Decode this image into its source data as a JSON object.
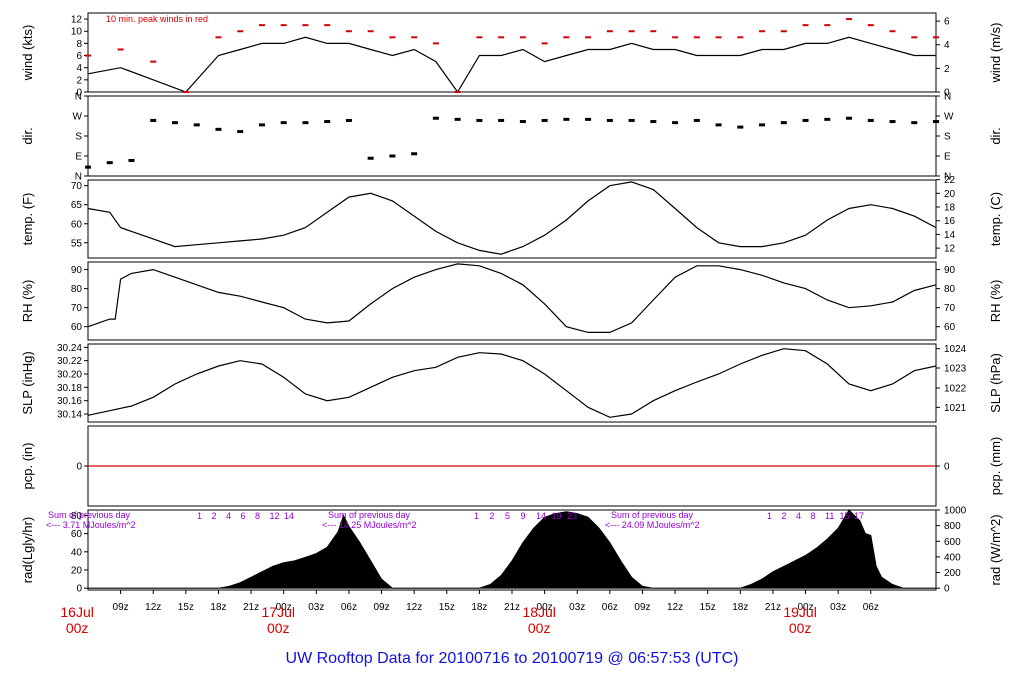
{
  "title": "UW Rooftop Data for 20100716  to  20100719 @ 06:57:53  (UTC)",
  "chart_data": [
    {
      "id": "wind",
      "type": "line",
      "ylabel_left": "wind (kts)",
      "ylabel_right": "wind (m/s)",
      "ylim": [
        0,
        13
      ],
      "ticks_left": [
        "0",
        "2",
        "4",
        "6",
        "8",
        "10",
        "12"
      ],
      "ticks_left_values": [
        0,
        2,
        4,
        6,
        8,
        10,
        12
      ],
      "ticks_right": [
        "0",
        "2",
        "4",
        "6"
      ],
      "ticks_right_values_kts": [
        0,
        3.89,
        7.78,
        11.66
      ],
      "annotation": "10 min. peak winds in red",
      "annotation_color": "#d40000",
      "series": [
        {
          "name": "wind speed",
          "color": "#000000",
          "x": [
            0,
            3,
            6,
            9,
            12,
            14,
            16,
            18,
            20,
            22,
            24,
            26,
            28,
            30,
            32,
            34,
            36,
            38,
            40,
            42,
            44,
            46,
            48,
            50,
            52,
            54,
            56,
            58,
            60,
            62,
            64,
            66,
            68,
            70,
            72,
            74,
            76,
            78
          ],
          "values": [
            3,
            4,
            2,
            0,
            6,
            7,
            8,
            8,
            9,
            8,
            8,
            7,
            6,
            7,
            5,
            0,
            6,
            6,
            7,
            5,
            6,
            7,
            7,
            8,
            7,
            7,
            6,
            6,
            6,
            7,
            7,
            8,
            8,
            9,
            8,
            7,
            6,
            6
          ]
        },
        {
          "name": "10 min. peak",
          "color": "#d40000",
          "x": [
            0,
            3,
            6,
            9,
            12,
            14,
            16,
            18,
            20,
            22,
            24,
            26,
            28,
            30,
            32,
            34,
            36,
            38,
            40,
            42,
            44,
            46,
            48,
            50,
            52,
            54,
            56,
            58,
            60,
            62,
            64,
            66,
            68,
            70,
            72,
            74,
            76,
            78
          ],
          "values": [
            6,
            7,
            5,
            0,
            9,
            10,
            11,
            11,
            11,
            11,
            10,
            10,
            9,
            9,
            8,
            0,
            9,
            9,
            9,
            8,
            9,
            9,
            10,
            10,
            10,
            9,
            9,
            9,
            9,
            10,
            10,
            11,
            11,
            12,
            11,
            10,
            9,
            9
          ]
        }
      ]
    },
    {
      "id": "dir",
      "type": "scatter",
      "ylabel_left": "dir.",
      "ylabel_right": "dir.",
      "ylim": [
        0,
        360
      ],
      "ticks_left": [
        "N",
        "E",
        "S",
        "W",
        "N"
      ],
      "ticks_left_values": [
        0,
        90,
        180,
        270,
        360
      ],
      "ticks_right": [
        "N",
        "E",
        "S",
        "W",
        "N"
      ],
      "ticks_right_values": [
        0,
        90,
        180,
        270,
        360
      ],
      "series": [
        {
          "name": "direction",
          "color": "#000000",
          "x": [
            0,
            2,
            4,
            6,
            8,
            10,
            12,
            14,
            16,
            18,
            20,
            22,
            24,
            26,
            28,
            30,
            32,
            34,
            36,
            38,
            40,
            42,
            44,
            46,
            48,
            50,
            52,
            54,
            56,
            58,
            60,
            62,
            64,
            66,
            68,
            70,
            72,
            74,
            76,
            78
          ],
          "values": [
            40,
            60,
            70,
            250,
            240,
            230,
            210,
            200,
            230,
            240,
            240,
            245,
            250,
            80,
            90,
            100,
            260,
            255,
            250,
            250,
            245,
            250,
            255,
            255,
            250,
            250,
            245,
            240,
            250,
            230,
            220,
            230,
            240,
            250,
            255,
            260,
            250,
            245,
            240,
            245
          ]
        }
      ]
    },
    {
      "id": "temp",
      "type": "line",
      "ylabel_left": "temp. (F)",
      "ylabel_right": "temp. (C)",
      "ylim": [
        51,
        71.5
      ],
      "ticks_left": [
        "55",
        "60",
        "65",
        "70"
      ],
      "ticks_left_values": [
        55,
        60,
        65,
        70
      ],
      "ticks_right": [
        "12",
        "14",
        "16",
        "18",
        "20",
        "22"
      ],
      "ticks_right_values_f": [
        53.6,
        57.2,
        60.8,
        64.4,
        68,
        71.6
      ],
      "series": [
        {
          "name": "temperature",
          "color": "#000000",
          "x": [
            0,
            2,
            3,
            5,
            8,
            10,
            12,
            14,
            16,
            18,
            20,
            22,
            24,
            26,
            28,
            30,
            32,
            34,
            36,
            38,
            40,
            42,
            44,
            46,
            48,
            50,
            52,
            54,
            56,
            58,
            60,
            62,
            64,
            66,
            68,
            70,
            72,
            74,
            76,
            78
          ],
          "values": [
            64,
            63,
            59,
            57,
            54,
            54.5,
            55,
            55.5,
            56,
            57,
            59,
            63,
            67,
            68,
            66,
            62,
            58,
            55,
            53,
            52,
            54,
            57,
            61,
            66,
            70,
            71,
            69,
            64,
            59,
            55,
            54,
            54,
            55,
            57,
            61,
            64,
            65,
            64,
            62,
            59
          ]
        }
      ]
    },
    {
      "id": "rh",
      "type": "line",
      "ylabel_left": "RH (%)",
      "ylabel_right": "RH (%)",
      "ylim": [
        53,
        94
      ],
      "ticks_left": [
        "60",
        "70",
        "80",
        "90"
      ],
      "ticks_left_values": [
        60,
        70,
        80,
        90
      ],
      "ticks_right": [
        "60",
        "70",
        "80",
        "90"
      ],
      "ticks_right_values": [
        60,
        70,
        80,
        90
      ],
      "series": [
        {
          "name": "relative humidity",
          "color": "#000000",
          "x": [
            0,
            2,
            2.5,
            3,
            4,
            6,
            8,
            10,
            12,
            14,
            16,
            18,
            20,
            22,
            24,
            26,
            28,
            30,
            32,
            34,
            36,
            38,
            40,
            42,
            44,
            46,
            48,
            50,
            52,
            54,
            56,
            58,
            60,
            62,
            64,
            66,
            68,
            70,
            72,
            74,
            76,
            78
          ],
          "values": [
            60,
            64,
            64,
            85,
            88,
            90,
            86,
            82,
            78,
            76,
            73,
            70,
            64,
            62,
            63,
            72,
            80,
            86,
            90,
            93,
            92,
            88,
            82,
            72,
            60,
            57,
            57,
            62,
            74,
            86,
            92,
            92,
            90,
            87,
            83,
            80,
            74,
            70,
            71,
            73,
            79,
            82
          ]
        }
      ]
    },
    {
      "id": "slp",
      "type": "line",
      "ylabel_left": "SLP (inHg)",
      "ylabel_right": "SLP (hPa)",
      "ylim": [
        30.128,
        30.245
      ],
      "ticks_left": [
        "30.14",
        "30.16",
        "30.18",
        "30.20",
        "30.22",
        "30.24"
      ],
      "ticks_left_values": [
        30.14,
        30.16,
        30.18,
        30.2,
        30.22,
        30.24
      ],
      "ticks_right": [
        "1021",
        "1022",
        "1023",
        "1024"
      ],
      "ticks_right_values_inhg": [
        30.15,
        30.179,
        30.209,
        30.238
      ],
      "series": [
        {
          "name": "sea level pressure",
          "color": "#000000",
          "x": [
            0,
            2,
            4,
            6,
            8,
            10,
            12,
            14,
            16,
            18,
            20,
            22,
            24,
            26,
            28,
            30,
            32,
            34,
            36,
            38,
            40,
            42,
            44,
            46,
            48,
            50,
            52,
            54,
            56,
            58,
            60,
            62,
            64,
            66,
            68,
            70,
            72,
            74,
            76,
            78
          ],
          "values": [
            30.138,
            30.145,
            30.152,
            30.165,
            30.185,
            30.2,
            30.212,
            30.22,
            30.215,
            30.195,
            30.17,
            30.16,
            30.165,
            30.18,
            30.195,
            30.205,
            30.21,
            30.225,
            30.232,
            30.23,
            30.22,
            30.2,
            30.175,
            30.15,
            30.135,
            30.14,
            30.16,
            30.175,
            30.188,
            30.2,
            30.215,
            30.228,
            30.238,
            30.235,
            30.215,
            30.185,
            30.175,
            30.185,
            30.205,
            30.212
          ]
        }
      ]
    },
    {
      "id": "pcp",
      "type": "line",
      "ylabel_left": "pcp. (in)",
      "ylabel_right": "pcp. (mm)",
      "ylim": [
        -1,
        1
      ],
      "ticks_left": [
        "0"
      ],
      "ticks_left_values": [
        0
      ],
      "ticks_right": [
        "0"
      ],
      "ticks_right_values": [
        0
      ],
      "series": [
        {
          "name": "precipitation",
          "color": "#d40000",
          "x": [
            0,
            78
          ],
          "values": [
            0,
            0
          ]
        }
      ]
    },
    {
      "id": "rad",
      "type": "area",
      "ylabel_left": "rad(Lgly/hr)",
      "ylabel_right": "rad (W/m^2)",
      "ylim": [
        -2,
        86
      ],
      "ticks_left": [
        "0",
        "20",
        "40",
        "60",
        "80"
      ],
      "ticks_left_values": [
        0,
        20,
        40,
        60,
        80
      ],
      "ticks_right": [
        "0",
        "200",
        "400",
        "600",
        "800",
        "1000"
      ],
      "ticks_right_values_lgly": [
        0,
        17.2,
        34.4,
        51.6,
        68.8,
        86
      ],
      "sums": [
        {
          "line1": "Sum of previous day",
          "line2": "<--- 3.71 MJoules/m^2"
        },
        {
          "line1": "Sum of previous day",
          "line2": "<--- 14.25 MJoules/m^2"
        },
        {
          "line1": "Sum of previous day",
          "line2": "<--- 24.09 MJoules/m^2"
        }
      ],
      "hour_marks": [
        [
          "1",
          "2",
          "4",
          "6",
          "8",
          "12",
          "14"
        ],
        [
          "1",
          "2",
          "5",
          "9",
          "14",
          "19",
          "23"
        ],
        [
          "1",
          "2",
          "4",
          "8",
          "11",
          "15",
          "17"
        ]
      ],
      "series": [
        {
          "name": "solar radiation",
          "color": "#000000",
          "x": [
            0,
            12,
            13,
            14,
            15,
            16,
            17,
            18,
            19,
            20,
            21,
            22,
            23,
            23.5,
            24,
            25,
            26,
            27,
            28,
            36,
            37,
            38,
            39,
            40,
            41,
            42,
            43,
            44,
            45,
            46,
            47,
            48,
            49,
            50,
            51,
            52,
            60,
            61,
            62,
            63,
            64,
            65,
            66,
            67,
            68,
            69,
            70,
            71,
            71.5,
            72,
            72.5,
            73,
            74,
            75,
            78
          ],
          "values": [
            0,
            0,
            2,
            6,
            12,
            18,
            24,
            28,
            30,
            34,
            38,
            45,
            62,
            80,
            68,
            50,
            30,
            10,
            0,
            0,
            4,
            14,
            30,
            50,
            66,
            78,
            82,
            84,
            82,
            78,
            66,
            50,
            30,
            12,
            2,
            0,
            0,
            4,
            10,
            18,
            24,
            30,
            36,
            44,
            54,
            66,
            86,
            74,
            60,
            58,
            24,
            12,
            4,
            0,
            0
          ]
        }
      ]
    }
  ],
  "x_axis": {
    "hours_total": 78,
    "start_hour": 6,
    "tick_labels": [
      "09z",
      "12z",
      "15z",
      "18z",
      "21z",
      "00z",
      "03z",
      "06z",
      "09z",
      "12z",
      "15z",
      "18z",
      "21z",
      "00z",
      "03z",
      "06z",
      "09z",
      "12z",
      "15z",
      "18z",
      "21z",
      "00z",
      "03z",
      "06z"
    ],
    "day_labels": [
      {
        "hour": -1,
        "day": "16Jul",
        "time": "00z"
      },
      {
        "hour": 17.5,
        "day": "17Jul",
        "time": "00z"
      },
      {
        "hour": 41.5,
        "day": "18Jul",
        "time": "00z"
      },
      {
        "hour": 65.5,
        "day": "19Jul",
        "time": "00z"
      }
    ]
  },
  "colors": {
    "axis": "#000000",
    "accent_red": "#d40000",
    "purple": "#9400d3",
    "title_blue": "#1010e0"
  }
}
